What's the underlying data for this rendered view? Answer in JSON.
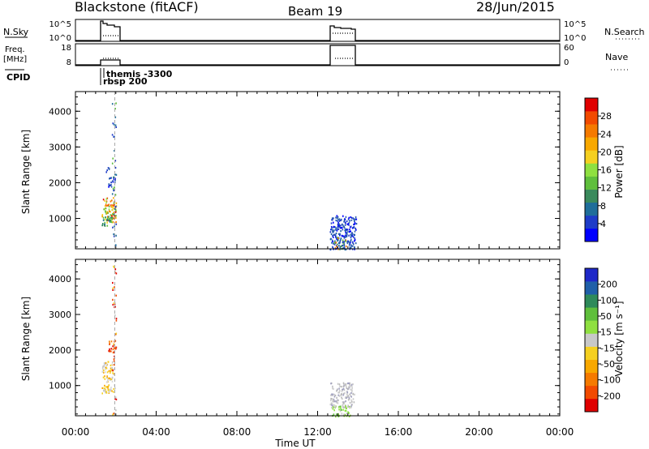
{
  "header": {
    "title": "Blackstone (fitACF)",
    "beam": "Beam 19",
    "date": "28/Jun/2015"
  },
  "top_panels": {
    "nsky": {
      "left_label": "N.Sky",
      "left_ticks": [
        "10^5",
        "10^0"
      ],
      "right_ticks": [
        "10^5",
        "10^0"
      ],
      "right_label": "N.Search"
    },
    "freq": {
      "left_label_1": "Freq.",
      "left_label_2": "[MHz]",
      "left_ticks": [
        "18",
        "8"
      ],
      "right_ticks": [
        "60",
        "0"
      ],
      "right_label": "Nave"
    },
    "cpid": {
      "label": "CPID",
      "annotations": [
        "themis -3300",
        "rbsp 200"
      ]
    }
  },
  "x_axis": {
    "label": "Time UT",
    "ticks": [
      "00:00",
      "04:00",
      "08:00",
      "12:00",
      "16:00",
      "20:00",
      "00:00"
    ],
    "range_hours": [
      0,
      24
    ]
  },
  "chart_data": [
    {
      "type": "heatmap",
      "title": "",
      "ylabel": "Slant Range [km]",
      "ylim": [
        150,
        4550
      ],
      "xlim": [
        0,
        24
      ],
      "yticks": [
        "1000",
        "2000",
        "3000",
        "4000"
      ],
      "colorbar": {
        "label": "Power [dB]",
        "ticks": [
          "4",
          "8",
          "12",
          "16",
          "20",
          "24",
          "28"
        ],
        "colors": [
          "#0000ff",
          "#1e3cc8",
          "#1f6e9a",
          "#3a8a5c",
          "#5fbf3c",
          "#8fe040",
          "#f5d020",
          "#f8a800",
          "#f57a00",
          "#f24a00",
          "#e00000"
        ]
      },
      "blobs": [
        {
          "t0": 1.3,
          "t1": 2.0,
          "r0": 900,
          "r1": 1600,
          "level": "high"
        },
        {
          "t0": 1.3,
          "t1": 1.8,
          "r0": 800,
          "r1": 1100,
          "level": "mid"
        },
        {
          "t0": 1.6,
          "t1": 1.95,
          "r0": 1900,
          "r1": 2200,
          "level": "low"
        },
        {
          "t0": 1.5,
          "t1": 1.7,
          "r0": 2300,
          "r1": 2450,
          "level": "low"
        },
        {
          "t0": 1.8,
          "t1": 2.0,
          "r0": 200,
          "r1": 4400,
          "level": "sparse"
        },
        {
          "t0": 12.6,
          "t1": 13.9,
          "r0": 150,
          "r1": 1100,
          "level": "low"
        },
        {
          "t0": 12.8,
          "t1": 13.4,
          "r0": 150,
          "r1": 500,
          "level": "mixed"
        }
      ]
    },
    {
      "type": "heatmap",
      "title": "",
      "ylabel": "Slant Range [km]",
      "ylim": [
        150,
        4550
      ],
      "xlim": [
        0,
        24
      ],
      "yticks": [
        "1000",
        "2000",
        "3000",
        "4000"
      ],
      "colorbar": {
        "label": "Velocity [m s⁻¹]",
        "ticks": [
          "200",
          "100",
          "50",
          "15",
          "-15",
          "-50",
          "-100",
          "-200"
        ],
        "colors": [
          "#1e28c8",
          "#1f5fa8",
          "#2e8a5a",
          "#5fbf3c",
          "#8fe040",
          "#c8c8c8",
          "#f5d020",
          "#f8a800",
          "#f57a00",
          "#f24a00",
          "#e00000"
        ]
      },
      "blobs": [
        {
          "t0": 1.3,
          "t1": 1.9,
          "r0": 900,
          "r1": 1700,
          "level": "neg-small"
        },
        {
          "t0": 1.3,
          "t1": 1.8,
          "r0": 800,
          "r1": 1000,
          "level": "neg-mid"
        },
        {
          "t0": 1.6,
          "t1": 2.0,
          "r0": 1950,
          "r1": 2300,
          "level": "neg-big"
        },
        {
          "t0": 1.8,
          "t1": 2.0,
          "r0": 200,
          "r1": 4500,
          "level": "sparse"
        },
        {
          "t0": 12.6,
          "t1": 13.8,
          "r0": 400,
          "r1": 1100,
          "level": "grey"
        },
        {
          "t0": 12.7,
          "t1": 13.6,
          "r0": 150,
          "r1": 450,
          "level": "pos-small"
        }
      ]
    }
  ]
}
